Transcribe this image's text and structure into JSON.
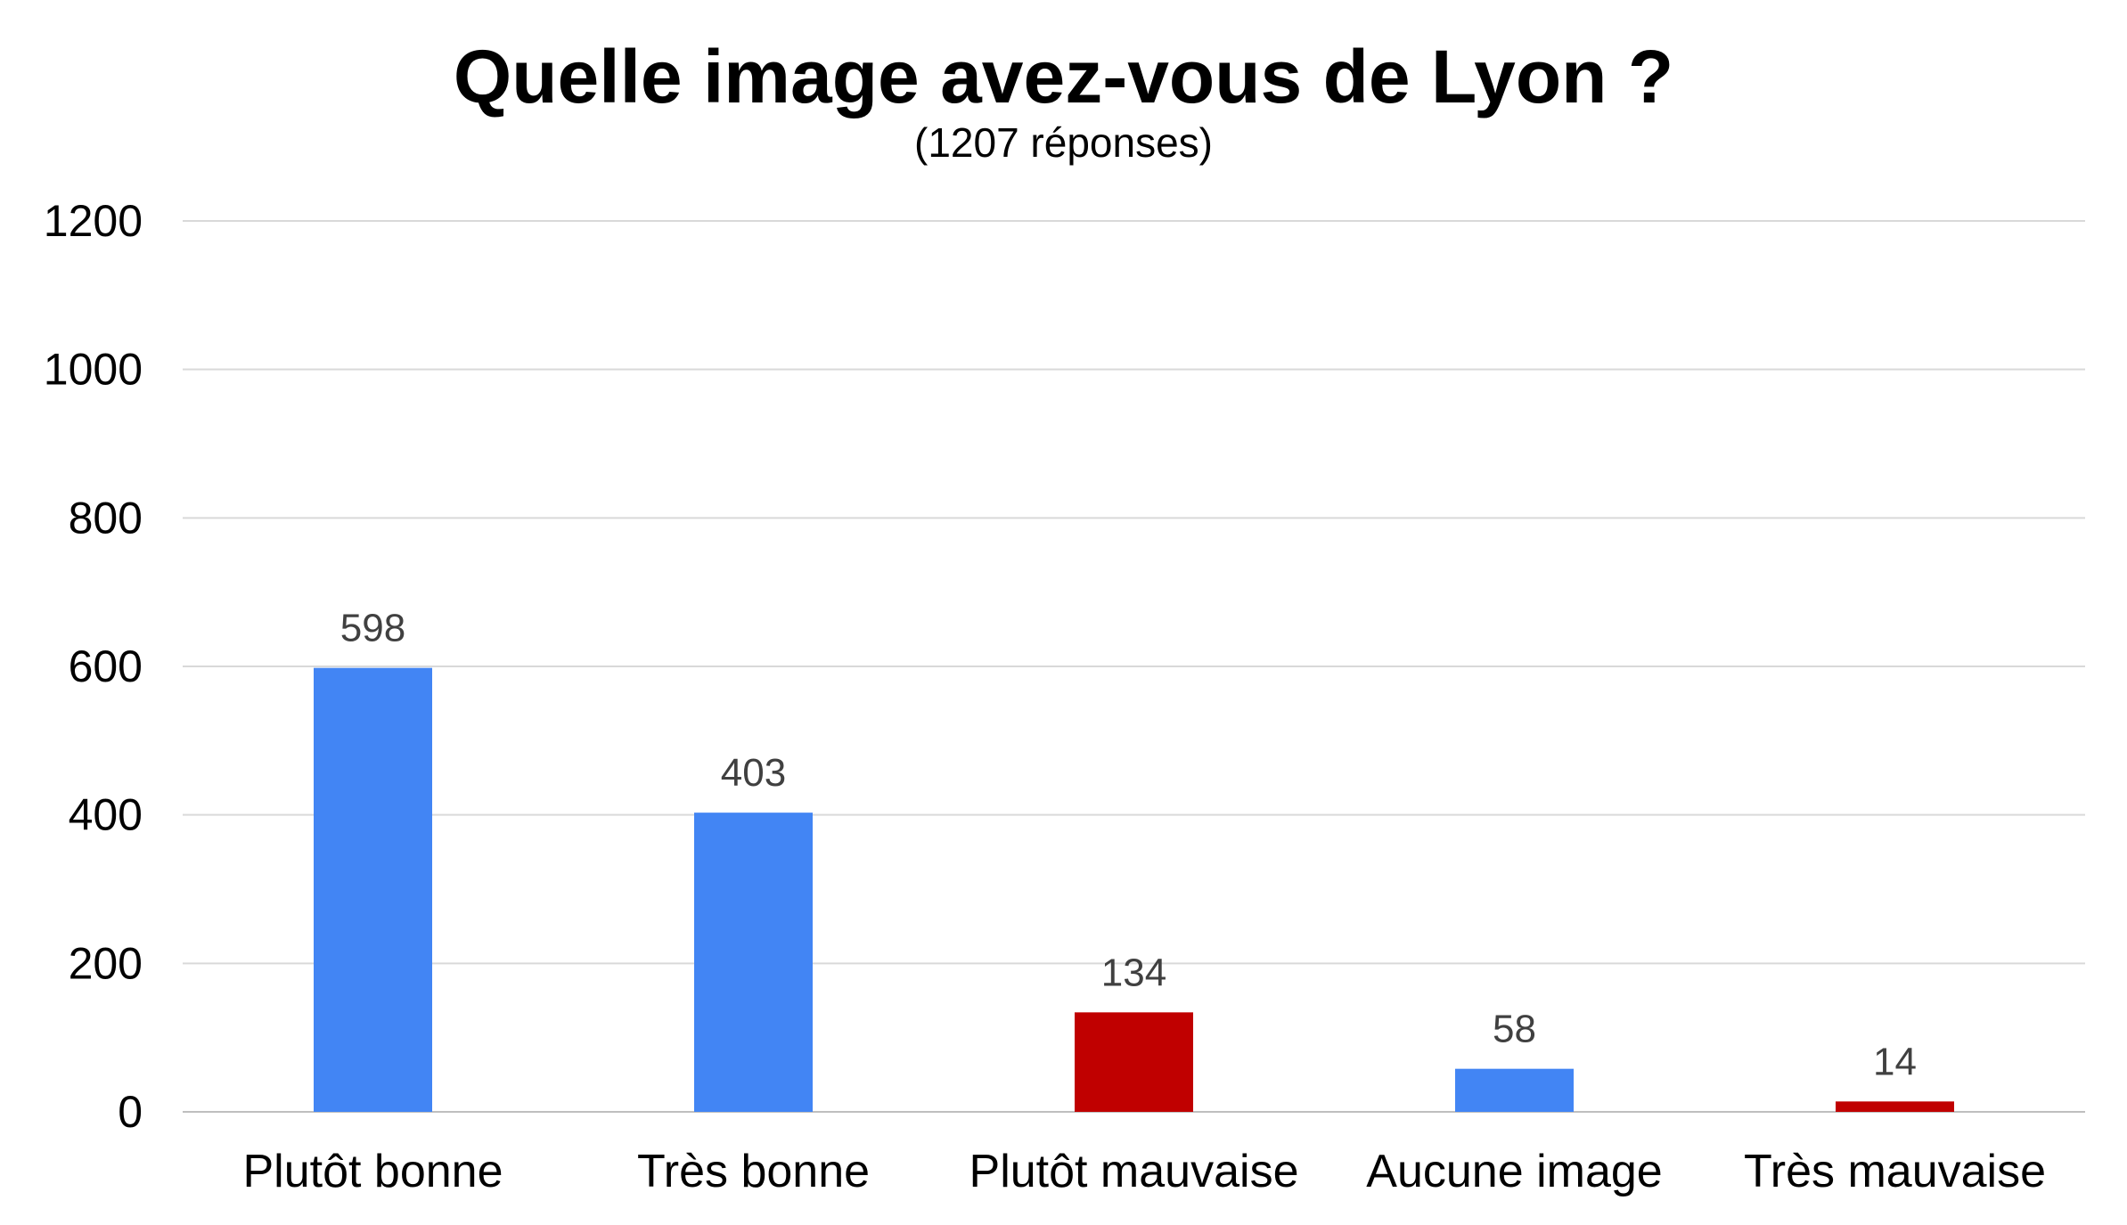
{
  "chart_data": {
    "type": "bar",
    "title": "Quelle image avez-vous de Lyon ?",
    "subtitle": "(1207 réponses)",
    "categories": [
      "Plutôt bonne",
      "Très bonne",
      "Plutôt mauvaise",
      "Aucune image",
      "Très mauvaise"
    ],
    "values": [
      598,
      403,
      134,
      58,
      14
    ],
    "data_labels": [
      "598",
      "403",
      "134",
      "58",
      "14"
    ],
    "bar_colors": [
      "#4285f4",
      "#4285f4",
      "#c00000",
      "#4285f4",
      "#c00000"
    ],
    "ylim": [
      0,
      1200
    ],
    "yticks": [
      0,
      200,
      400,
      600,
      800,
      1000,
      1200
    ],
    "ytick_labels": [
      "0",
      "200",
      "400",
      "600",
      "800",
      "1000",
      "1200"
    ],
    "xlabel": "",
    "ylabel": "",
    "grid": true,
    "legend": false
  }
}
